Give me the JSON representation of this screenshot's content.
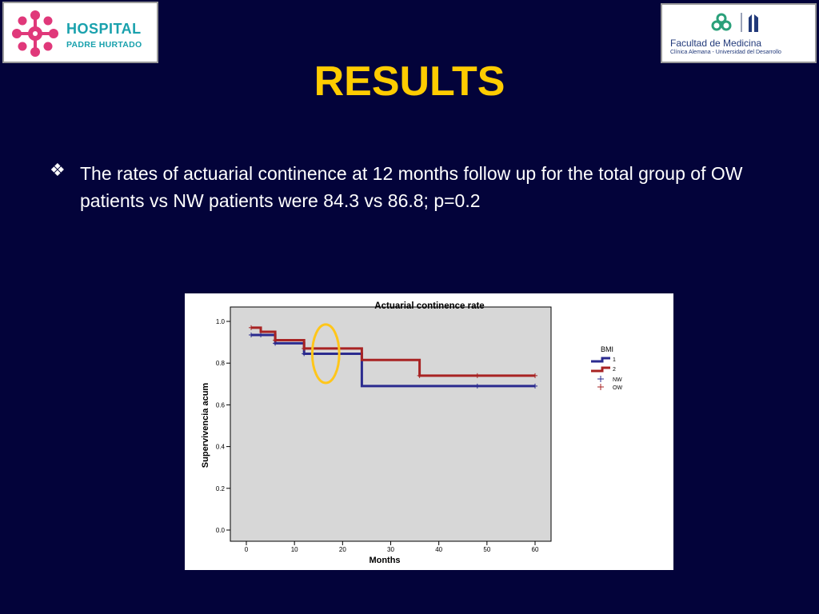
{
  "logos": {
    "left": {
      "line1": "HOSPITAL",
      "line2": "PADRE HURTADO"
    },
    "right": {
      "line1": "Facultad de Medicina",
      "line2": "Clínica Alemana - Universidad del Desarrollo"
    }
  },
  "slide": {
    "title": "RESULTS",
    "bullet_text": "The rates of actuarial continence at 12 months follow up for the total group of OW patients vs NW patients were 84.3 vs 86.8; p=0.2"
  },
  "colors": {
    "background": "#03033a",
    "title": "#ffcc00",
    "series_1": "#2b2b8f",
    "series_2": "#a82323",
    "highlight": "#ffc61a",
    "plot_bg": "#d7d7d7"
  },
  "chart_data": {
    "type": "line",
    "step": true,
    "title": "Actuarial continence rate",
    "xlabel": "Months",
    "ylabel": "Supervivencia acum",
    "xlim": [
      0,
      60
    ],
    "ylim": [
      0,
      1.0
    ],
    "x_ticks": [
      "0",
      "10",
      "20",
      "30",
      "40",
      "50",
      "60"
    ],
    "y_ticks": [
      "0.0",
      "0.2",
      "0.4",
      "0.6",
      "0.8",
      "1.0"
    ],
    "grid": false,
    "legend_position": "right",
    "legend": {
      "title": "BMI",
      "entries": [
        "1",
        "2",
        "NW",
        "OW"
      ]
    },
    "series": [
      {
        "name": "1",
        "step_points": [
          [
            1,
            0.935
          ],
          [
            6,
            0.935
          ],
          [
            6,
            0.895
          ],
          [
            12,
            0.895
          ],
          [
            12,
            0.845
          ],
          [
            24,
            0.845
          ],
          [
            24,
            0.69
          ],
          [
            60,
            0.69
          ]
        ],
        "censored": [
          [
            1,
            0.935
          ],
          [
            3,
            0.935
          ],
          [
            6,
            0.895
          ],
          [
            12,
            0.845
          ],
          [
            48,
            0.69
          ],
          [
            60,
            0.69
          ]
        ]
      },
      {
        "name": "2",
        "step_points": [
          [
            1,
            0.97
          ],
          [
            3,
            0.97
          ],
          [
            3,
            0.95
          ],
          [
            6,
            0.95
          ],
          [
            6,
            0.91
          ],
          [
            12,
            0.91
          ],
          [
            12,
            0.87
          ],
          [
            24,
            0.87
          ],
          [
            24,
            0.815
          ],
          [
            36,
            0.815
          ],
          [
            36,
            0.74
          ],
          [
            60,
            0.74
          ]
        ],
        "censored": [
          [
            1,
            0.97
          ],
          [
            6,
            0.91
          ],
          [
            12,
            0.87
          ],
          [
            36,
            0.74
          ],
          [
            48,
            0.74
          ],
          [
            60,
            0.74
          ]
        ]
      }
    ],
    "highlight_ellipse": {
      "x_center": 16.5,
      "y_center": 0.845,
      "x_radius": 2.8,
      "y_radius": 0.14
    }
  }
}
